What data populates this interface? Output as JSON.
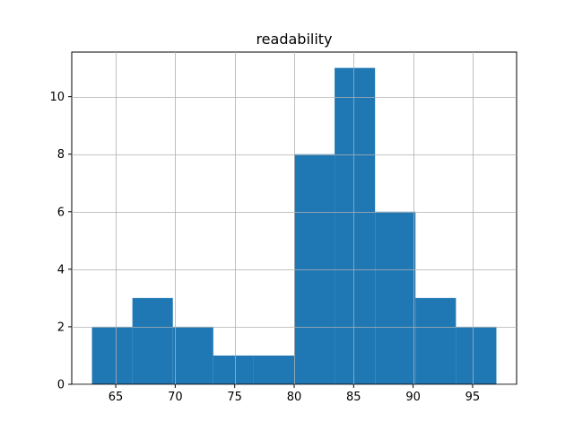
{
  "chart_data": {
    "type": "bar",
    "title": "readability",
    "xlabel": "",
    "ylabel": "",
    "bins": [
      {
        "x0": 63.0,
        "x1": 66.4,
        "count": 2
      },
      {
        "x0": 66.4,
        "x1": 69.8,
        "count": 3
      },
      {
        "x0": 69.8,
        "x1": 73.2,
        "count": 2
      },
      {
        "x0": 73.2,
        "x1": 76.6,
        "count": 1
      },
      {
        "x0": 76.6,
        "x1": 80.0,
        "count": 1
      },
      {
        "x0": 80.0,
        "x1": 83.4,
        "count": 8
      },
      {
        "x0": 83.4,
        "x1": 86.8,
        "count": 11
      },
      {
        "x0": 86.8,
        "x1": 90.2,
        "count": 6
      },
      {
        "x0": 90.2,
        "x1": 93.6,
        "count": 3
      },
      {
        "x0": 93.6,
        "x1": 97.0,
        "count": 2
      }
    ],
    "xlim": [
      61.3,
      98.7
    ],
    "ylim": [
      0,
      11.55
    ],
    "xticks": [
      65,
      70,
      75,
      80,
      85,
      90,
      95
    ],
    "yticks": [
      0,
      2,
      4,
      6,
      8,
      10
    ],
    "grid": true,
    "bar_color": "#1f77b4",
    "grid_color": "#b0b0b0"
  }
}
